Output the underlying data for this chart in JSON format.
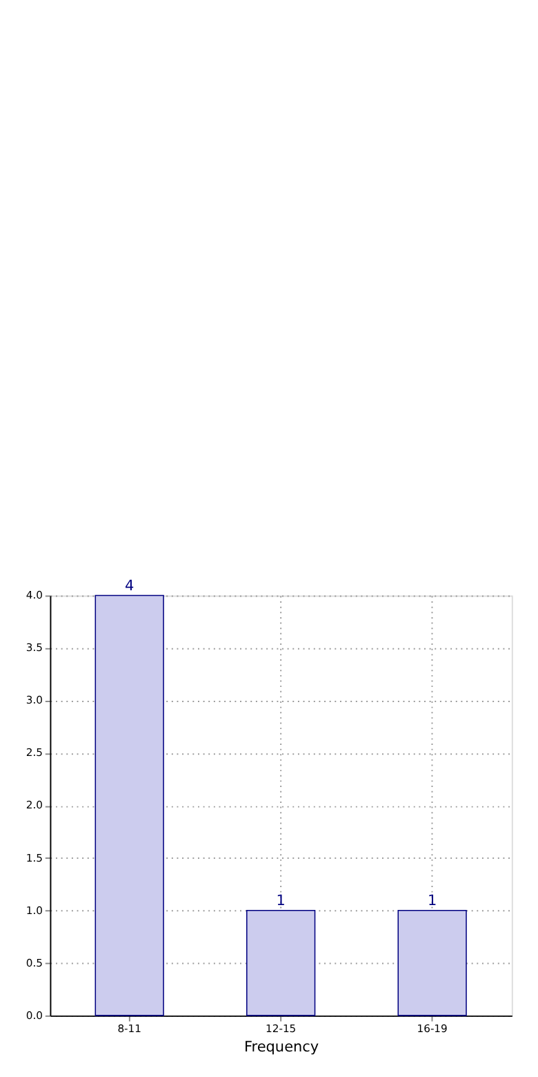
{
  "chart_data": {
    "type": "bar",
    "xlabel": "Frequency",
    "categories": [
      "8-11",
      "12-15",
      "16-19"
    ],
    "values": [
      4,
      1,
      1
    ],
    "color": "#ccccee",
    "ylim": [
      0,
      4
    ],
    "yticks": [
      {
        "value": 0,
        "label": "0.0"
      },
      {
        "value": 0.5,
        "label": "0.5"
      },
      {
        "value": 1,
        "label": "1.0"
      },
      {
        "value": 1.5,
        "label": "1.5"
      },
      {
        "value": 2,
        "label": "2.0"
      },
      {
        "value": 2.5,
        "label": "2.5"
      },
      {
        "value": 3,
        "label": "3.0"
      },
      {
        "value": 3.5,
        "label": "3.5"
      },
      {
        "value": 4,
        "label": "4.0"
      }
    ],
    "grid": true,
    "data_labels": true
  }
}
